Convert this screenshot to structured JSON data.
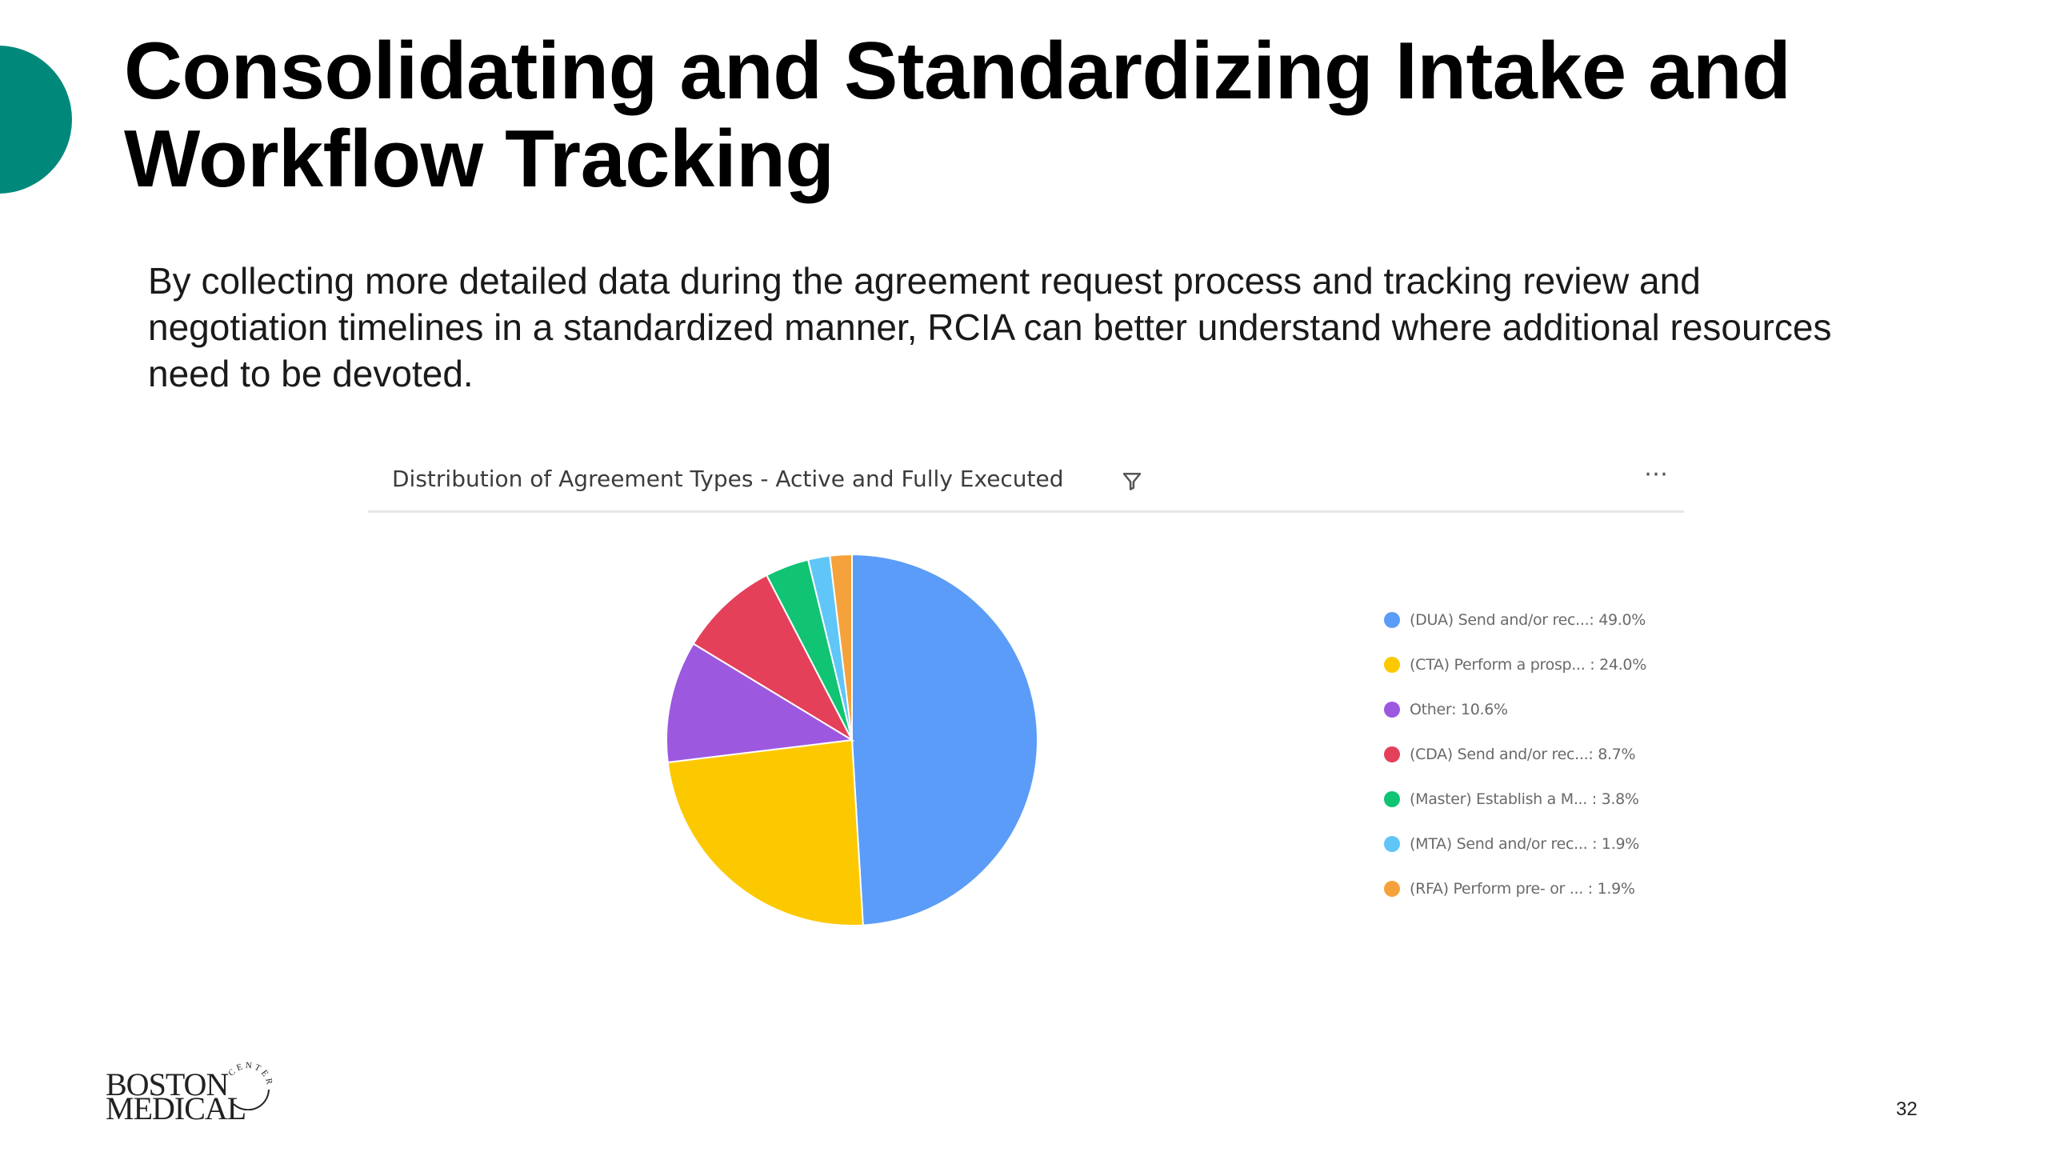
{
  "slide": {
    "title": "Consolidating and Standardizing Intake and Workflow Tracking",
    "body": "By collecting more detailed data during the agreement request process and tracking review and negotiation timelines in a standardized manner, RCIA can better understand where additional resources need to be devoted.",
    "page_number": "32",
    "accent_color": "#00897b"
  },
  "logo": {
    "line1": "BOSTON",
    "line2": "MEDICAL",
    "arc_text": "CENTER"
  },
  "chart_header": {
    "title": "Distribution of Agreement Types - Active and Fully Executed",
    "filter_icon": "filter-icon",
    "more_label": "⋯"
  },
  "chart_data": {
    "type": "pie",
    "title": "Distribution of Agreement Types - Active and Fully Executed",
    "legend_position": "right",
    "categories": [
      "(DUA) Send and/or rec...",
      "(CTA) Perform a prosp...",
      "Other",
      "(CDA) Send and/or rec...",
      "(Master) Establish a M...",
      "(MTA) Send and/or rec...",
      "(RFA) Perform pre- or ..."
    ],
    "values": [
      49.0,
      24.0,
      10.6,
      8.7,
      3.8,
      1.9,
      1.9
    ],
    "legend_labels": [
      "(DUA) Send and/or rec...: 49.0%",
      "(CTA) Perform a prosp... : 24.0%",
      "Other: 10.6%",
      "(CDA) Send and/or rec...: 8.7%",
      "(Master) Establish a M... : 3.8%",
      "(MTA) Send and/or rec... : 1.9%",
      "(RFA) Perform pre- or ... : 1.9%"
    ],
    "colors": [
      "#5b9cf8",
      "#fcc900",
      "#9c59e0",
      "#e4405a",
      "#10c474",
      "#5fc6f7",
      "#f6a23c"
    ]
  }
}
